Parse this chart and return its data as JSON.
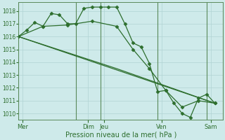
{
  "background_color": "#ceeaea",
  "grid_color": "#b0d4d4",
  "line_color": "#2d6e2d",
  "marker_color": "#2d6e2d",
  "xlabel": "Pression niveau de la mer( hPa )",
  "ylim": [
    1009.5,
    1018.7
  ],
  "yticks": [
    1010,
    1011,
    1012,
    1013,
    1014,
    1015,
    1016,
    1017,
    1018
  ],
  "xlim": [
    0,
    25
  ],
  "xtick_positions": [
    0.5,
    8.5,
    10.5,
    17.5,
    23.5
  ],
  "xtick_labels": [
    "Mer",
    "Dim",
    "Jeu",
    "Ven",
    "Sam"
  ],
  "vline_positions": [
    0,
    7,
    10,
    17,
    23,
    25
  ],
  "series": [
    {
      "x": [
        0,
        1,
        2,
        3,
        4,
        5,
        6,
        7,
        8,
        9,
        10,
        11,
        12,
        13,
        14,
        15,
        16,
        17,
        18,
        19,
        20,
        21,
        22,
        23,
        24
      ],
      "y": [
        1016.0,
        1016.5,
        1017.1,
        1016.8,
        1017.8,
        1017.7,
        1017.0,
        1017.0,
        1018.2,
        1018.3,
        1018.3,
        1018.3,
        1018.3,
        1017.0,
        1015.5,
        1015.2,
        1013.9,
        1011.7,
        1011.8,
        1010.8,
        1010.0,
        1009.7,
        1011.2,
        1011.5,
        1010.8
      ],
      "marker": "D",
      "markersize": 2.5,
      "linewidth": 0.9
    },
    {
      "x": [
        0,
        3,
        6,
        9,
        12,
        14,
        16,
        18,
        20,
        22,
        24
      ],
      "y": [
        1016.0,
        1016.8,
        1016.9,
        1017.2,
        1016.8,
        1015.0,
        1013.5,
        1011.8,
        1010.5,
        1011.0,
        1010.8
      ],
      "marker": "D",
      "markersize": 2.5,
      "linewidth": 0.9
    },
    {
      "x": [
        0,
        24
      ],
      "y": [
        1016.0,
        1010.8
      ],
      "marker": null,
      "markersize": 0,
      "linewidth": 0.9
    },
    {
      "x": [
        0,
        12,
        24
      ],
      "y": [
        1016.0,
        1013.5,
        1010.8
      ],
      "marker": null,
      "markersize": 0,
      "linewidth": 0.9
    }
  ],
  "figsize": [
    3.2,
    2.0
  ],
  "dpi": 100
}
